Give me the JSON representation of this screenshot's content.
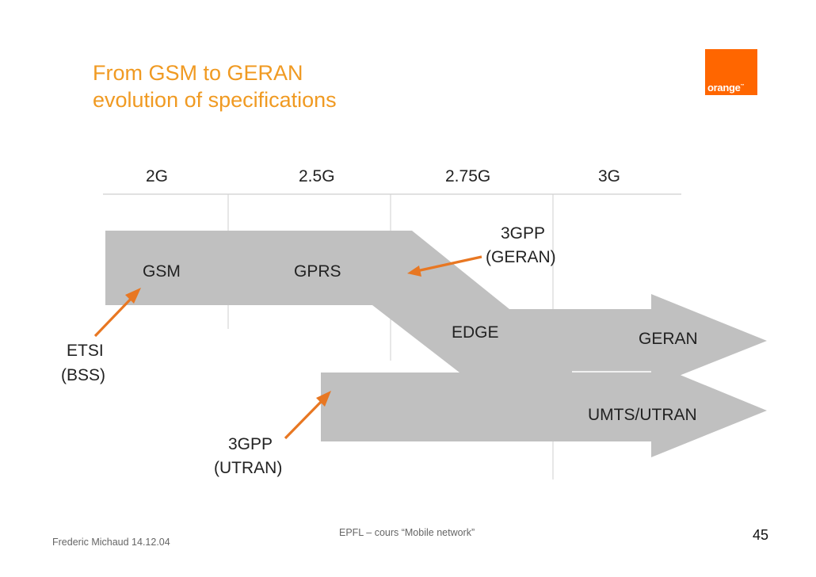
{
  "slide": {
    "title_line1": "From GSM to GERAN",
    "title_line2": "evolution of specifications",
    "logo_text": "orange",
    "logo_tm": "™",
    "brand_color": "#ff6600",
    "title_color": "#f09a22",
    "arrow_fill": "#c0c0c0",
    "annotation_color": "#e87722"
  },
  "generations": [
    "2G",
    "2.5G",
    "2.75G",
    "3G"
  ],
  "labels": {
    "gsm": "GSM",
    "gprs": "GPRS",
    "edge": "EDGE",
    "geran": "GERAN",
    "umts": "UMTS/UTRAN",
    "geran_body_1": "3GPP",
    "geran_body_2": "(GERAN)",
    "etsi_1": "ETSI",
    "etsi_2": "(BSS)",
    "utran_body_1": "3GPP",
    "utran_body_2": "(UTRAN)"
  },
  "footer": {
    "author_date": "Frederic Michaud 14.12.04",
    "course": "EPFL – cours “Mobile network”",
    "page_number": "45"
  }
}
